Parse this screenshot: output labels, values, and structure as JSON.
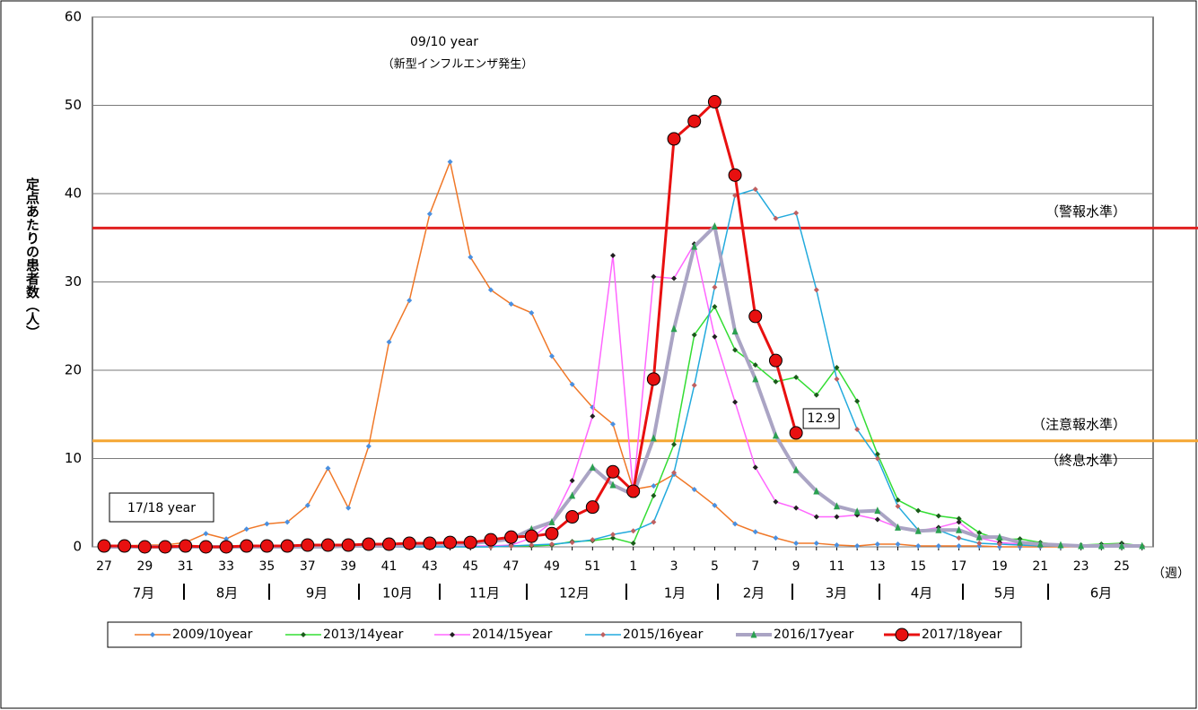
{
  "chart_data": {
    "type": "line",
    "y_label": "定点あたりの患者数（人）",
    "x_unit": "（週）",
    "categories": [
      "27",
      null,
      "29",
      null,
      "31",
      null,
      "33",
      null,
      "35",
      null,
      "37",
      null,
      "39",
      null,
      "41",
      null,
      "43",
      null,
      "45",
      null,
      "47",
      null,
      "49",
      null,
      "51",
      null,
      "1",
      null,
      "3",
      null,
      "5",
      null,
      "7",
      null,
      "9",
      null,
      "11",
      null,
      "13",
      null,
      "15",
      null,
      "17",
      null,
      "19",
      null,
      "21",
      null,
      "23",
      null,
      "25",
      null
    ],
    "months": [
      "7月",
      "8月",
      "9月",
      "10月",
      "11月",
      "12月",
      "1月",
      "2月",
      "3月",
      "4月",
      "5月",
      "6月"
    ],
    "ylim": [
      0,
      60
    ],
    "yticks": [
      0,
      10,
      20,
      30,
      40,
      50,
      60
    ],
    "grid": true,
    "reference_lines": [
      {
        "value": 36.1,
        "color": "#e02020",
        "labels": [
          "（警報水準）"
        ]
      },
      {
        "value": 12,
        "color": "#f5a632",
        "labels": [
          "（注意報水準）",
          "（終息水準）"
        ]
      }
    ],
    "annotations": [
      "09/10 year",
      "（新型インフルエンザ発生）",
      "17/18 year"
    ],
    "series": [
      {
        "name": "2009/10year",
        "color": "#f07828",
        "marker": "diamond",
        "marker_color": "#4a90e0",
        "values": [
          0,
          0.1,
          0.2,
          0.2,
          0.5,
          1.5,
          0.9,
          2.0,
          2.6,
          2.8,
          4.7,
          8.9,
          4.4,
          11.4,
          23.2,
          27.9,
          37.7,
          43.6,
          32.8,
          29.1,
          27.5,
          26.5,
          21.6,
          18.4,
          15.8,
          13.9,
          6.5,
          6.9,
          8.2,
          6.5,
          4.7,
          2.6,
          1.7,
          1.0,
          0.4,
          0.4,
          0.2,
          0.1,
          0.3,
          0.3,
          0.1,
          0.1,
          0.1,
          0.1,
          0,
          0,
          0,
          0,
          0,
          0,
          0,
          0
        ]
      },
      {
        "name": "2013/14year",
        "color": "#33dd33",
        "marker": "diamond",
        "marker_color": "#1a5a1a",
        "values": [
          0,
          0,
          0,
          0,
          0,
          0,
          0,
          0,
          0,
          0,
          0,
          0,
          0,
          0,
          0,
          0,
          0,
          0,
          0,
          0,
          0.1,
          0.1,
          0.2,
          0.6,
          0.7,
          1.0,
          0.4,
          5.8,
          11.6,
          24.0,
          27.2,
          22.3,
          20.6,
          18.7,
          19.2,
          17.2,
          20.3,
          16.5,
          10.5,
          5.3,
          4.1,
          3.5,
          3.2,
          1.6,
          0.8,
          0.9,
          0.5,
          0.2,
          0.2,
          0.3,
          0.4,
          0.1
        ]
      },
      {
        "name": "2014/15year",
        "color": "#ff66ff",
        "marker": "diamond",
        "marker_color": "#202020",
        "values": [
          0,
          0,
          0,
          0,
          0,
          0,
          0,
          0,
          0,
          0,
          0,
          0,
          0,
          0,
          0,
          0,
          0,
          0,
          0.1,
          0.1,
          0.2,
          1.0,
          2.8,
          7.5,
          14.8,
          33.0,
          6.2,
          30.6,
          30.4,
          34.3,
          23.8,
          16.4,
          9.0,
          5.1,
          4.4,
          3.4,
          3.4,
          3.6,
          3.1,
          2.2,
          1.8,
          2.2,
          2.8,
          1.0,
          0.5,
          0.3,
          0.2,
          0.1,
          0.1,
          0.2,
          0.3,
          0.1
        ]
      },
      {
        "name": "2015/16year",
        "color": "#22aadd",
        "marker": "diamond",
        "marker_color": "#c06060",
        "values": [
          0,
          0,
          0,
          0,
          0,
          0,
          0,
          0,
          0,
          0,
          0,
          0,
          0,
          0,
          0,
          0,
          0,
          0,
          0,
          0,
          0.1,
          0.2,
          0.3,
          0.5,
          0.8,
          1.4,
          1.8,
          2.8,
          8.4,
          18.3,
          29.4,
          39.8,
          40.5,
          37.2,
          37.8,
          29.1,
          19.0,
          13.3,
          10.0,
          4.6,
          1.9,
          1.9,
          1.0,
          0.4,
          0.3,
          0.2,
          0.1,
          0.1,
          0.1,
          0.1,
          0.1,
          0.1
        ]
      },
      {
        "name": "2016/17year",
        "color": "#aaa4c4",
        "marker": "triangle",
        "marker_color": "#2aa050",
        "values": [
          0,
          0,
          0,
          0,
          0,
          0,
          0,
          0,
          0,
          0,
          0,
          0,
          0.1,
          0.1,
          0.1,
          0.2,
          0.3,
          0.3,
          0.4,
          0.6,
          0.9,
          2.0,
          2.8,
          5.8,
          9.0,
          7.0,
          5.9,
          12.3,
          24.7,
          34.0,
          36.3,
          24.4,
          19.0,
          12.6,
          8.7,
          6.3,
          4.6,
          4.0,
          4.1,
          2.2,
          1.8,
          1.9,
          1.9,
          1.1,
          1.1,
          0.5,
          0.3,
          0.2,
          0.1,
          0.1,
          0.1,
          0.1
        ]
      },
      {
        "name": "2017/18year",
        "color": "#e81010",
        "marker": "circle",
        "marker_color": "#e81010",
        "values": [
          0.1,
          0.1,
          0.0,
          0.0,
          0.1,
          0.0,
          0.0,
          0.1,
          0.1,
          0.1,
          0.2,
          0.2,
          0.2,
          0.3,
          0.3,
          0.4,
          0.4,
          0.5,
          0.5,
          0.8,
          1.1,
          1.2,
          1.5,
          3.4,
          4.5,
          8.5,
          6.3,
          19.0,
          46.2,
          48.2,
          50.4,
          42.1,
          26.1,
          21.1,
          12.9,
          null,
          null,
          null,
          null,
          null,
          null,
          null,
          null,
          null,
          null,
          null,
          null,
          null,
          null,
          null,
          null,
          null
        ],
        "labeled_index": 34
      }
    ]
  }
}
